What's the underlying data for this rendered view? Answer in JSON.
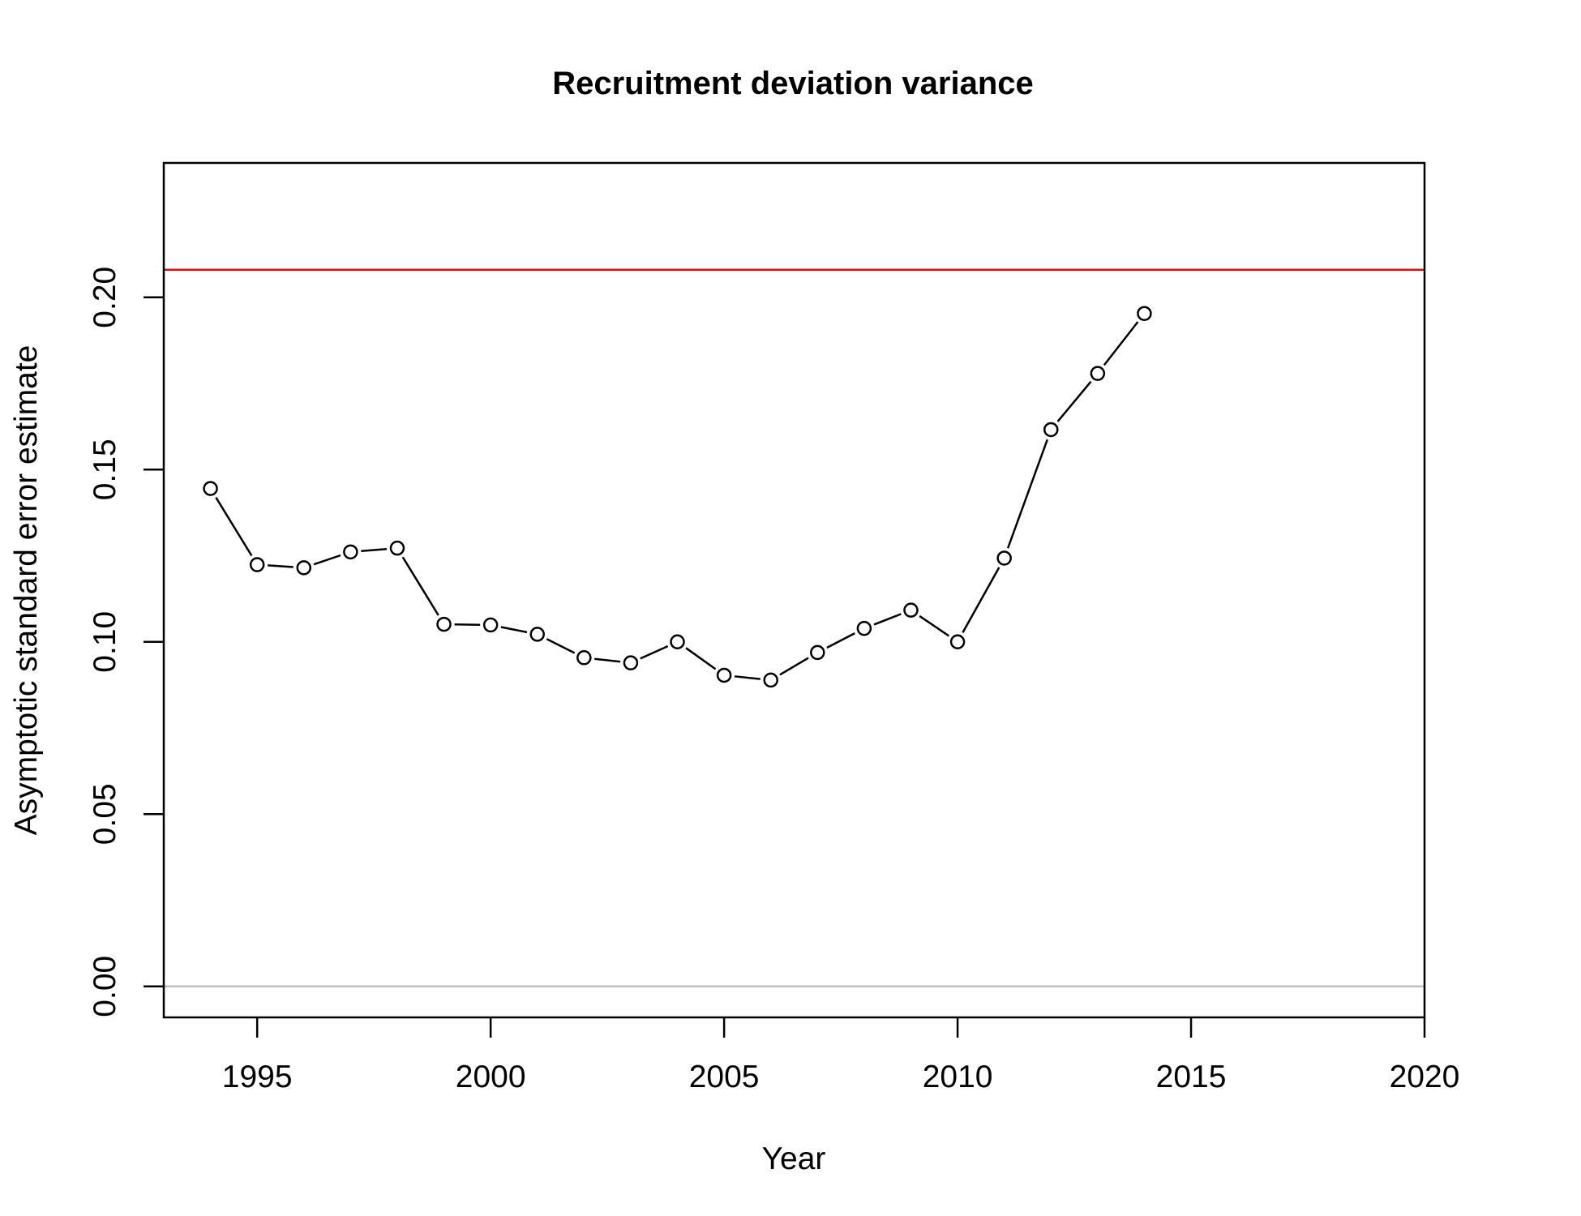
{
  "chart_data": {
    "type": "line",
    "title": "Recruitment deviation variance",
    "xlabel": "Year",
    "ylabel": "Asymptotic standard error estimate",
    "xlim": [
      1993,
      2020
    ],
    "ylim": [
      -0.009,
      0.239
    ],
    "x_ticks": [
      "1995",
      "2000",
      "2005",
      "2010",
      "2015",
      "2020"
    ],
    "y_ticks": [
      "0.00",
      "0.05",
      "0.10",
      "0.15",
      "0.20"
    ],
    "grid": false,
    "legend": "none",
    "series": [
      {
        "x": [
          1994,
          1995,
          1996,
          1997,
          1998,
          1999,
          2000,
          2001,
          2002,
          2003,
          2004,
          2005,
          2006,
          2007,
          2008,
          2009,
          2010,
          2011,
          2012,
          2013,
          2014
        ],
        "y": [
          0.1445,
          0.1224,
          0.1215,
          0.1261,
          0.1272,
          0.1051,
          0.1049,
          0.1022,
          0.0954,
          0.0939,
          0.1,
          0.0903,
          0.0889,
          0.0969,
          0.1039,
          0.1092,
          0.1,
          0.1243,
          0.1616,
          0.1779,
          0.1953
        ],
        "color": "#000000",
        "marker": "open-circle"
      }
    ],
    "reference_lines": [
      {
        "orientation": "horizontal",
        "y": 0.208,
        "color": "#ff0000"
      },
      {
        "orientation": "horizontal",
        "y": 0.0,
        "color": "#bebebe"
      }
    ]
  }
}
